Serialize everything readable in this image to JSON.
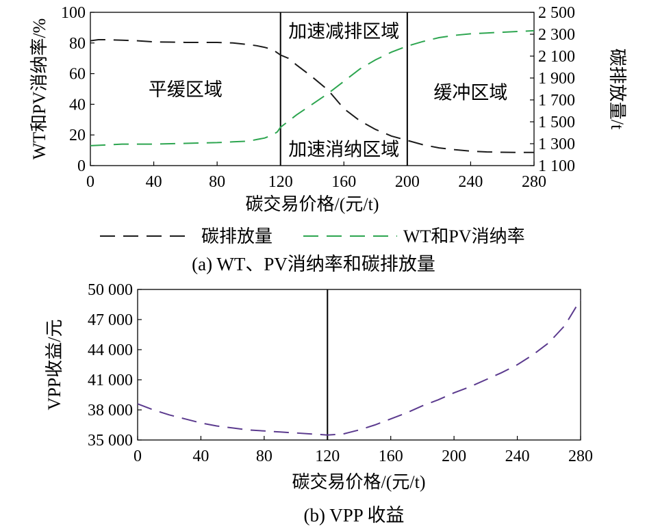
{
  "chart_data": [
    {
      "type": "line",
      "caption": "(a) WT、PV消纳率和碳排放量",
      "xlabel": "碳交易价格/(元/t)",
      "ylabel": "WT和PV消纳率/%",
      "ylabel_right": "碳排放量/t",
      "xlim": [
        0,
        280
      ],
      "ylim": [
        0,
        100
      ],
      "ylim_right": [
        1100,
        2500
      ],
      "x_ticks": [
        0,
        40,
        80,
        120,
        160,
        200,
        240,
        280
      ],
      "x_tick_labels": [
        "0",
        "40",
        "80",
        "120",
        "160",
        "200",
        "240",
        "280"
      ],
      "y_ticks": [
        0,
        20,
        40,
        60,
        80,
        100
      ],
      "y_tick_labels": [
        "0",
        "20",
        "40",
        "60",
        "80",
        "100"
      ],
      "y_ticks_right": [
        1100,
        1300,
        1500,
        1700,
        1900,
        2100,
        2300,
        2500
      ],
      "y_tick_labels_right": [
        "1 100",
        "1 300",
        "1 500",
        "1 700",
        "1 900",
        "2 100",
        "2 300",
        "2 500"
      ],
      "grid": false,
      "legend_position": "bottom",
      "dividers": [
        120,
        200
      ],
      "regions": [
        {
          "label": "平缓区域",
          "x": 60,
          "y": 50
        },
        {
          "label": "加速减排区域",
          "x": 160,
          "y": 88
        },
        {
          "label": "加速消纳区域",
          "x": 160,
          "y": 11
        },
        {
          "label": "缓冲区域",
          "x": 240,
          "y": 48
        }
      ],
      "series": [
        {
          "name": "碳排放量",
          "axis": "right",
          "color": "#1a1a1a",
          "x": [
            0,
            5,
            10,
            20,
            30,
            40,
            50,
            60,
            70,
            80,
            90,
            100,
            105,
            110,
            115,
            120,
            125,
            130,
            140,
            150,
            160,
            170,
            180,
            190,
            200,
            210,
            220,
            230,
            240,
            250,
            260,
            270,
            280
          ],
          "values": [
            2240,
            2250,
            2250,
            2245,
            2240,
            2230,
            2228,
            2225,
            2225,
            2225,
            2220,
            2205,
            2195,
            2180,
            2160,
            2110,
            2080,
            2020,
            1910,
            1790,
            1620,
            1510,
            1430,
            1370,
            1330,
            1290,
            1262,
            1245,
            1232,
            1225,
            1222,
            1220,
            1220
          ]
        },
        {
          "name": "WT和PV消纳率",
          "axis": "left",
          "color": "#2ca54f",
          "x": [
            0,
            10,
            20,
            40,
            60,
            80,
            90,
            100,
            105,
            110,
            115,
            118,
            120,
            130,
            140,
            150,
            160,
            170,
            180,
            190,
            200,
            210,
            220,
            230,
            240,
            250,
            260,
            270,
            280
          ],
          "values": [
            13,
            13.5,
            14,
            14,
            14.5,
            15,
            15.5,
            16,
            17,
            18,
            20,
            22,
            25,
            33,
            40,
            47,
            55,
            63,
            69,
            74,
            78,
            81,
            83.5,
            85,
            86,
            86.5,
            87,
            87.5,
            88
          ]
        }
      ]
    },
    {
      "type": "line",
      "caption": "(b) VPP 收益",
      "xlabel": "碳交易价格/(元/t)",
      "ylabel": "VPP收益/元",
      "xlim": [
        0,
        280
      ],
      "ylim": [
        35000,
        50000
      ],
      "x_ticks": [
        0,
        40,
        80,
        120,
        160,
        200,
        240,
        280
      ],
      "x_tick_labels": [
        "0",
        "40",
        "80",
        "120",
        "160",
        "200",
        "240",
        "280"
      ],
      "y_ticks": [
        35000,
        38000,
        41000,
        44000,
        47000,
        50000
      ],
      "y_tick_labels": [
        "35 000",
        "38 000",
        "41 000",
        "44 000",
        "47 000",
        "50 000"
      ],
      "grid": false,
      "dividers": [
        120
      ],
      "series": [
        {
          "name": "",
          "color": "#5b3a8e",
          "x": [
            0,
            10,
            20,
            30,
            40,
            50,
            60,
            70,
            80,
            90,
            100,
            110,
            120,
            130,
            140,
            150,
            160,
            170,
            180,
            190,
            200,
            210,
            220,
            230,
            240,
            250,
            260,
            270,
            280
          ],
          "values": [
            38600,
            38000,
            37500,
            37100,
            36700,
            36400,
            36200,
            36000,
            35900,
            35800,
            35700,
            35600,
            35500,
            35600,
            36000,
            36500,
            37100,
            37700,
            38400,
            39000,
            39700,
            40300,
            41000,
            41700,
            42500,
            43500,
            44700,
            46400,
            49000
          ]
        }
      ]
    }
  ]
}
